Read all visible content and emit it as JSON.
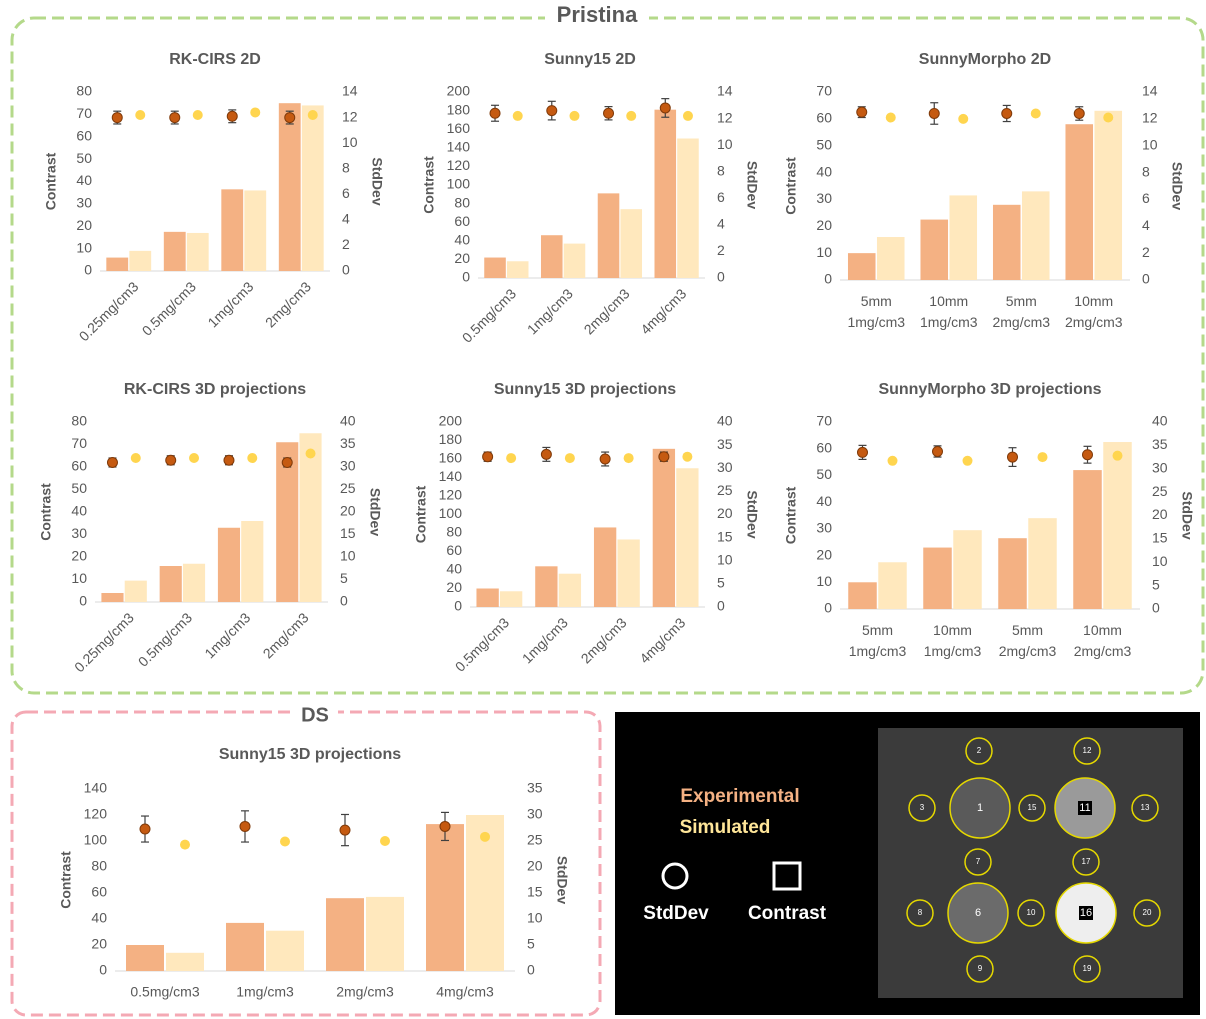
{
  "groups": {
    "pristine": "Pristina",
    "ds": "DS"
  },
  "legend": {
    "experimental": "Experimental",
    "simulated": "Simulated",
    "stddev": "StdDev",
    "contrast": "Contrast"
  },
  "phantom": {
    "labels": [
      1,
      2,
      3,
      6,
      7,
      8,
      9,
      10,
      11,
      12,
      13,
      15,
      16,
      17,
      19,
      20
    ]
  },
  "chart_data": [
    {
      "type": "combo",
      "title": "RK-CIRS 2D",
      "y_label": "Contrast",
      "y2_label": "StdDev",
      "categories": [
        "0.25mg/cm3",
        "0.5mg/cm3",
        "1mg/cm3",
        "2mg/cm3"
      ],
      "ylim": [
        0,
        80
      ],
      "yticks": [
        0,
        10,
        20,
        30,
        40,
        50,
        60,
        70,
        80
      ],
      "y2lim": [
        0,
        14
      ],
      "y2ticks": [
        0,
        2,
        4,
        6,
        8,
        10,
        12,
        14
      ],
      "series": [
        {
          "type": "bar",
          "color": "#f4b183",
          "values": [
            6,
            17.5,
            36.5,
            75
          ]
        },
        {
          "type": "bar",
          "color": "#ffe8bd",
          "values": [
            9,
            17,
            36,
            74
          ]
        },
        {
          "type": "scatter",
          "axis": "y2",
          "color": "#c55a11",
          "values": [
            12,
            12,
            12.1,
            12
          ],
          "errors": [
            0.5,
            0.5,
            0.5,
            0.5
          ]
        },
        {
          "type": "scatter",
          "axis": "y2",
          "color": "#ffd54f",
          "values": [
            12.2,
            12.2,
            12.4,
            12.2
          ]
        }
      ]
    },
    {
      "type": "combo",
      "title": "Sunny15 2D",
      "y_label": "Contrast",
      "y2_label": "StdDev",
      "categories": [
        "0.5mg/cm3",
        "1mg/cm3",
        "2mg/cm3",
        "4mg/cm3"
      ],
      "ylim": [
        0,
        200
      ],
      "yticks": [
        0,
        20,
        40,
        60,
        80,
        100,
        120,
        140,
        160,
        180,
        200
      ],
      "y2lim": [
        0,
        14
      ],
      "y2ticks": [
        0,
        2,
        4,
        6,
        8,
        10,
        12,
        14
      ],
      "series": [
        {
          "type": "bar",
          "color": "#f4b183",
          "values": [
            22,
            46,
            91,
            181
          ]
        },
        {
          "type": "bar",
          "color": "#ffe8bd",
          "values": [
            18,
            37,
            74,
            150
          ]
        },
        {
          "type": "scatter",
          "axis": "y2",
          "color": "#c55a11",
          "values": [
            12.4,
            12.6,
            12.4,
            12.8
          ],
          "errors": [
            0.6,
            0.7,
            0.5,
            0.7
          ]
        },
        {
          "type": "scatter",
          "axis": "y2",
          "color": "#ffd54f",
          "values": [
            12.2,
            12.2,
            12.2,
            12.2
          ]
        }
      ]
    },
    {
      "type": "combo",
      "title": "SunnyMorpho 2D",
      "y_label": "Contrast",
      "y2_label": "StdDev",
      "categories": [
        "5mm 1mg/cm3",
        "10mm 1mg/cm3",
        "5mm 2mg/cm3",
        "10mm 2mg/cm3"
      ],
      "ylim": [
        0,
        70
      ],
      "yticks": [
        0,
        10,
        20,
        30,
        40,
        50,
        60,
        70
      ],
      "y2lim": [
        0,
        14
      ],
      "y2ticks": [
        0,
        2,
        4,
        6,
        8,
        10,
        12,
        14
      ],
      "series": [
        {
          "type": "bar",
          "color": "#f4b183",
          "values": [
            10,
            22.5,
            28,
            58
          ]
        },
        {
          "type": "bar",
          "color": "#ffe8bd",
          "values": [
            16,
            31.5,
            33,
            63
          ]
        },
        {
          "type": "scatter",
          "axis": "y2",
          "color": "#c55a11",
          "values": [
            12.5,
            12.4,
            12.4,
            12.4
          ],
          "errors": [
            0.4,
            0.8,
            0.6,
            0.5
          ]
        },
        {
          "type": "scatter",
          "axis": "y2",
          "color": "#ffd54f",
          "values": [
            12.1,
            12,
            12.4,
            12.1
          ]
        }
      ]
    },
    {
      "type": "combo",
      "title": "RK-CIRS 3D projections",
      "y_label": "Contrast",
      "y2_label": "StdDev",
      "categories": [
        "0.25mg/cm3",
        "0.5mg/cm3",
        "1mg/cm3",
        "2mg/cm3"
      ],
      "ylim": [
        0,
        80
      ],
      "yticks": [
        0,
        10,
        20,
        30,
        40,
        50,
        60,
        70,
        80
      ],
      "y2lim": [
        0,
        40
      ],
      "y2ticks": [
        0,
        5,
        10,
        15,
        20,
        25,
        30,
        35,
        40
      ],
      "series": [
        {
          "type": "bar",
          "color": "#f4b183",
          "values": [
            4,
            16,
            33,
            71
          ]
        },
        {
          "type": "bar",
          "color": "#ffe8bd",
          "values": [
            9.5,
            17,
            36,
            75
          ]
        },
        {
          "type": "scatter",
          "axis": "y2",
          "color": "#c55a11",
          "values": [
            31,
            31.5,
            31.5,
            31
          ],
          "errors": [
            1,
            1,
            1,
            1
          ]
        },
        {
          "type": "scatter",
          "axis": "y2",
          "color": "#ffd54f",
          "values": [
            32,
            32,
            32,
            33
          ]
        }
      ]
    },
    {
      "type": "combo",
      "title": "Sunny15 3D projections",
      "y_label": "Contrast",
      "y2_label": "StdDev",
      "categories": [
        "0.5mg/cm3",
        "1mg/cm3",
        "2mg/cm3",
        "4mg/cm3"
      ],
      "ylim": [
        0,
        200
      ],
      "yticks": [
        0,
        20,
        40,
        60,
        80,
        100,
        120,
        140,
        160,
        180,
        200
      ],
      "y2lim": [
        0,
        40
      ],
      "y2ticks": [
        0,
        5,
        10,
        15,
        20,
        25,
        30,
        35,
        40
      ],
      "series": [
        {
          "type": "bar",
          "color": "#f4b183",
          "values": [
            20,
            44,
            86,
            171
          ]
        },
        {
          "type": "bar",
          "color": "#ffe8bd",
          "values": [
            17,
            36,
            73,
            150
          ]
        },
        {
          "type": "scatter",
          "axis": "y2",
          "color": "#c55a11",
          "values": [
            32.5,
            33,
            32,
            32.5
          ],
          "errors": [
            1,
            1.5,
            1.5,
            1
          ]
        },
        {
          "type": "scatter",
          "axis": "y2",
          "color": "#ffd54f",
          "values": [
            32.2,
            32.2,
            32.2,
            32.5
          ]
        }
      ]
    },
    {
      "type": "combo",
      "title": "SunnyMorpho 3D projections",
      "y_label": "Contrast",
      "y2_label": "StdDev",
      "categories": [
        "5mm 1mg/cm3",
        "10mm 1mg/cm3",
        "5mm 2mg/cm3",
        "10mm 2mg/cm3"
      ],
      "ylim": [
        0,
        70
      ],
      "yticks": [
        0,
        10,
        20,
        30,
        40,
        50,
        60,
        70
      ],
      "y2lim": [
        0,
        40
      ],
      "y2ticks": [
        0,
        5,
        10,
        15,
        20,
        25,
        30,
        35,
        40
      ],
      "series": [
        {
          "type": "bar",
          "color": "#f4b183",
          "values": [
            10,
            23,
            26.5,
            52
          ]
        },
        {
          "type": "bar",
          "color": "#ffe8bd",
          "values": [
            17.5,
            29.5,
            34,
            62.5
          ]
        },
        {
          "type": "scatter",
          "axis": "y2",
          "color": "#c55a11",
          "values": [
            33.5,
            33.7,
            32.5,
            33
          ],
          "errors": [
            1.5,
            1.2,
            2,
            1.8
          ]
        },
        {
          "type": "scatter",
          "axis": "y2",
          "color": "#ffd54f",
          "values": [
            31.7,
            31.7,
            32.5,
            32.8
          ]
        }
      ]
    },
    {
      "type": "combo",
      "title": "Sunny15 3D projections",
      "y_label": "Contrast",
      "y2_label": "StdDev",
      "categories": [
        "0.5mg/cm3",
        "1mg/cm3",
        "2mg/cm3",
        "4mg/cm3"
      ],
      "ylim": [
        0,
        140
      ],
      "yticks": [
        0,
        20,
        40,
        60,
        80,
        100,
        120,
        140
      ],
      "y2lim": [
        0,
        35
      ],
      "y2ticks": [
        0,
        5,
        10,
        15,
        20,
        25,
        30,
        35
      ],
      "series": [
        {
          "type": "bar",
          "color": "#f4b183",
          "values": [
            20,
            37,
            56,
            113
          ]
        },
        {
          "type": "bar",
          "color": "#ffe8bd",
          "values": [
            14,
            31,
            57,
            120
          ]
        },
        {
          "type": "scatter",
          "axis": "y2",
          "color": "#c55a11",
          "values": [
            27.3,
            27.8,
            27.1,
            27.8
          ],
          "errors": [
            2.5,
            3,
            3,
            2.7
          ]
        },
        {
          "type": "scatter",
          "axis": "y2",
          "color": "#ffd54f",
          "values": [
            24.3,
            24.9,
            25,
            25.8
          ]
        }
      ]
    }
  ]
}
